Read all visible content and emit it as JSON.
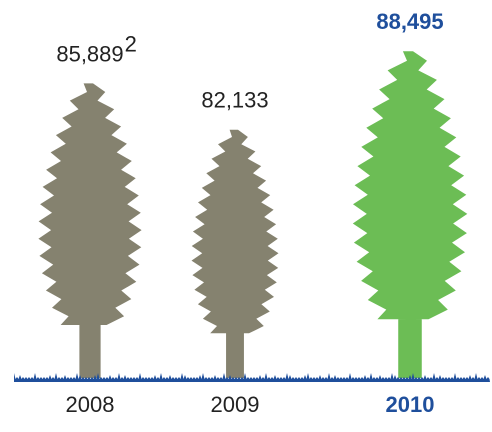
{
  "chart_data": {
    "type": "pictogram",
    "categories": [
      "2008",
      "2009",
      "2010"
    ],
    "values": [
      85889,
      82133,
      88495
    ],
    "value_labels": [
      "85,889",
      "82,133",
      "88,495"
    ],
    "value_label_footnotes": [
      "2",
      null,
      null
    ],
    "colors": [
      "#85826f",
      "#85826f",
      "#6cbd55"
    ],
    "label_colors": [
      "#222222",
      "#222222",
      "#1f4f9c"
    ],
    "label_bold": [
      false,
      false,
      true
    ],
    "ground_color": "#1f4f9c",
    "ylim": [
      62000,
      89000
    ]
  }
}
